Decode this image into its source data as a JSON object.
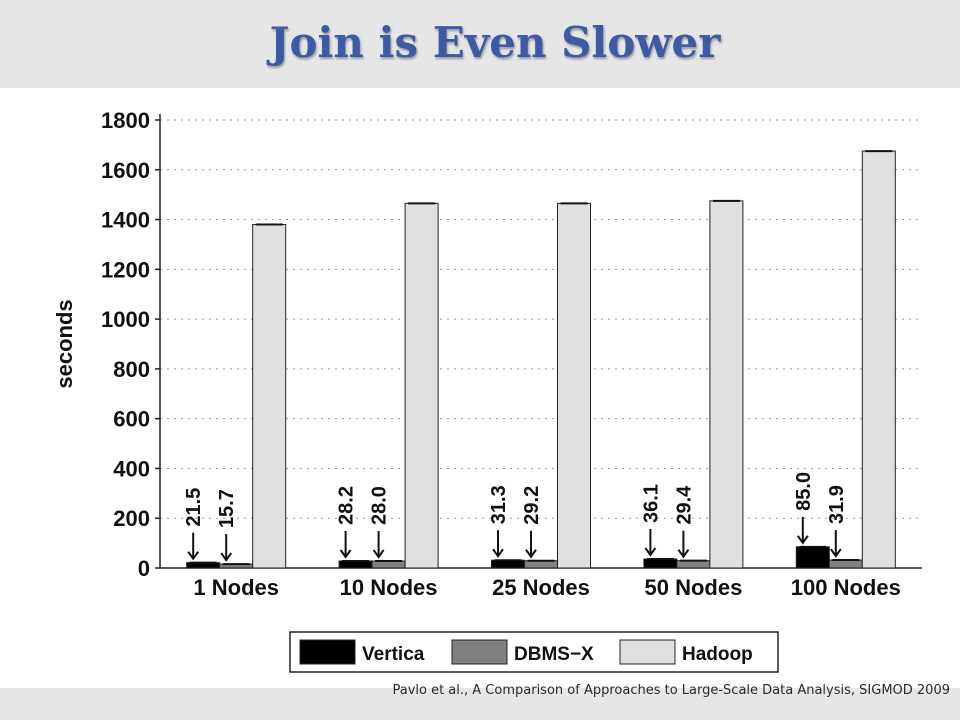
{
  "slide": {
    "title": "Join is Even Slower",
    "citation": "Pavlo et al., A Comparison of Approaches to Large-Scale Data Analysis, SIGMOD 2009"
  },
  "chart_data": {
    "type": "bar",
    "ylabel": "seconds",
    "xlabel": "",
    "ylim": [
      0,
      1800
    ],
    "yticks": [
      0,
      200,
      400,
      600,
      800,
      1000,
      1200,
      1400,
      1600,
      1800
    ],
    "grid": true,
    "legend_position": "bottom",
    "categories": [
      "1 Nodes",
      "10 Nodes",
      "25 Nodes",
      "50 Nodes",
      "100 Nodes"
    ],
    "series": [
      {
        "name": "Vertica",
        "color": "#000000",
        "values": [
          21.5,
          28.2,
          31.3,
          36.1,
          85.0
        ],
        "labels": [
          "21.5",
          "28.2",
          "31.3",
          "36.1",
          "85.0"
        ]
      },
      {
        "name": "DBMS−X",
        "color": "#808080",
        "values": [
          15.7,
          28.0,
          29.2,
          29.4,
          31.9
        ],
        "labels": [
          "15.7",
          "28.0",
          "29.2",
          "29.4",
          "31.9"
        ]
      },
      {
        "name": "Hadoop",
        "color": "#e0e0e0",
        "values": [
          1380,
          1465,
          1465,
          1475,
          1675
        ]
      }
    ]
  }
}
